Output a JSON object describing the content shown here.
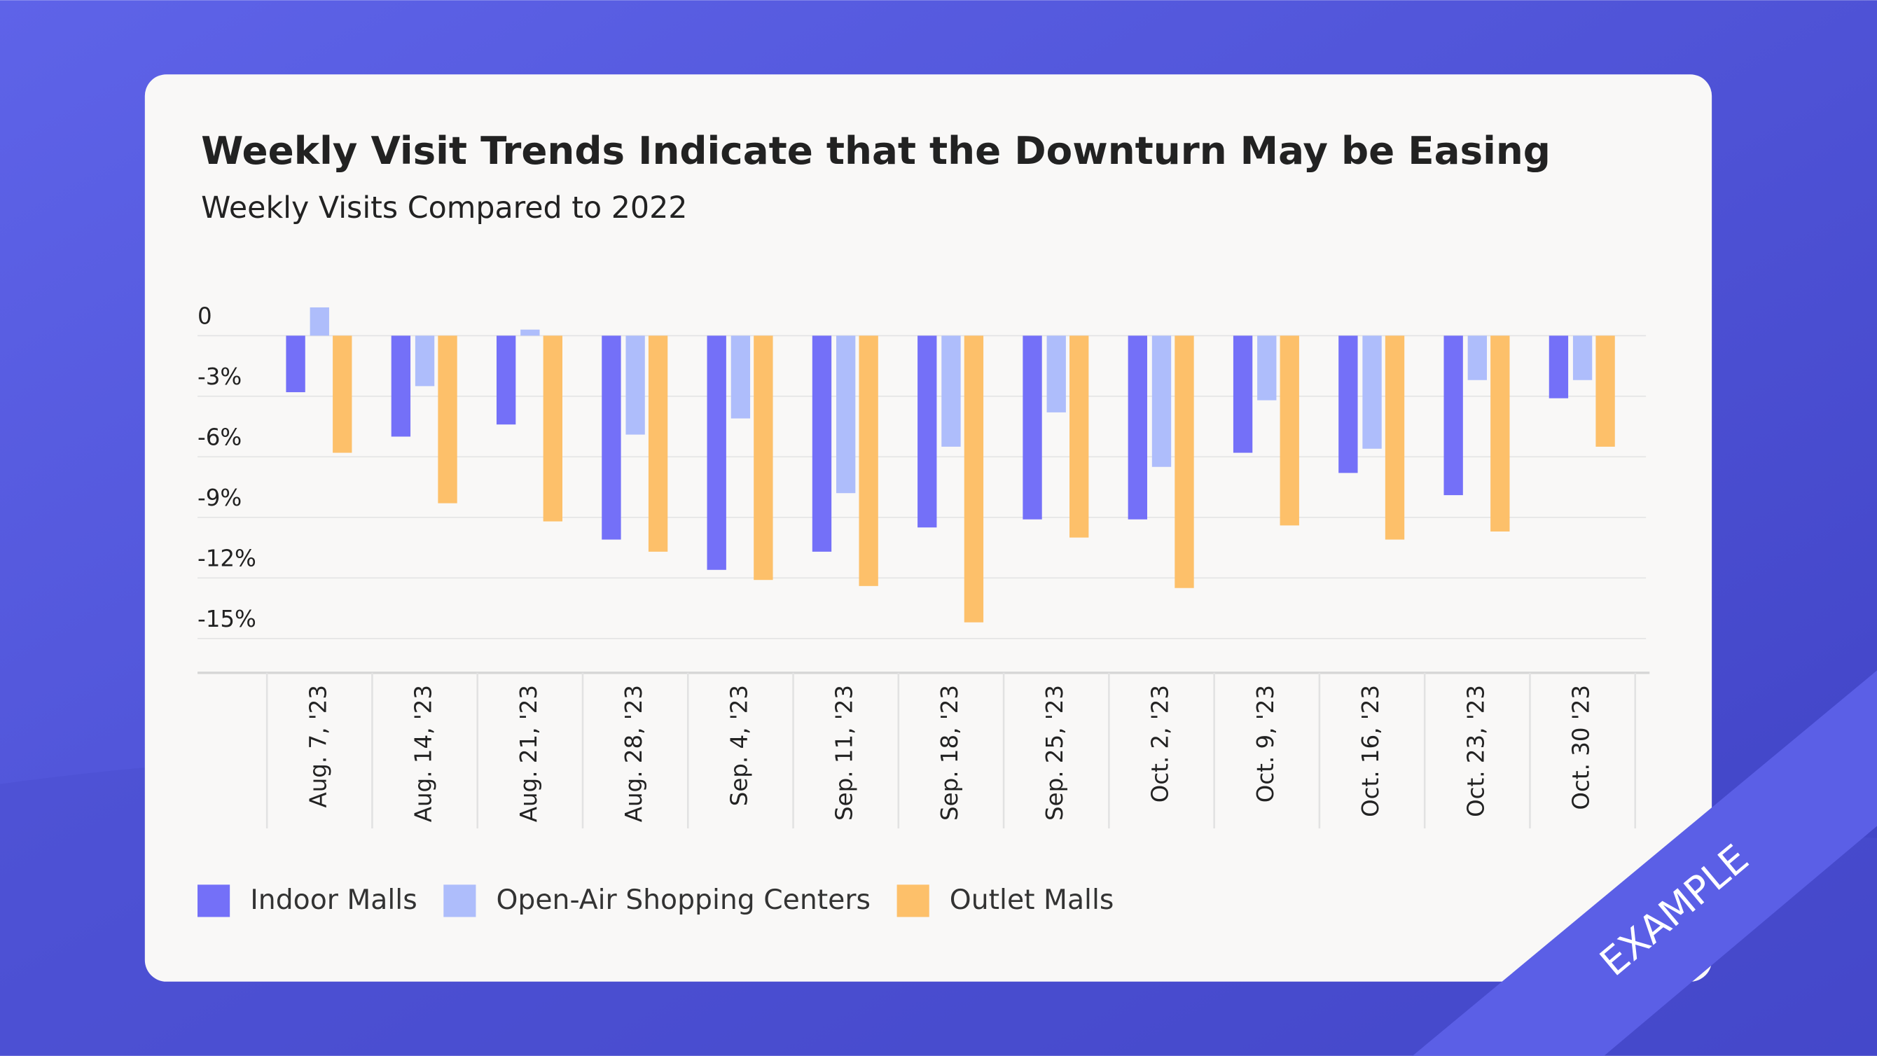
{
  "chart_data": {
    "type": "bar",
    "title": "Weekly Visit Trends Indicate that the Downturn May be Easing",
    "subtitle": "Weekly Visits Compared to 2022",
    "categories": [
      "Aug. 7, '23",
      "Aug. 14, '23",
      "Aug. 21, '23",
      "Aug. 28, '23",
      "Sep. 4, '23",
      "Sep. 11, '23",
      "Sep. 18, '23",
      "Sep. 25, '23",
      "Oct. 2, '23",
      "Oct. 9, '23",
      "Oct. 16, '23",
      "Oct. 23, '23",
      "Oct. 30 '23"
    ],
    "series": [
      {
        "name": "Indoor Malls",
        "color": "#7470f8",
        "values": [
          -2.8,
          -5.0,
          -4.4,
          -10.1,
          -11.6,
          -10.7,
          -9.5,
          -9.1,
          -9.1,
          -5.8,
          -6.8,
          -7.9,
          -3.1
        ]
      },
      {
        "name": "Open-Air Shopping Centers",
        "color": "#aebdfb",
        "values": [
          1.4,
          -2.5,
          0.3,
          -4.9,
          -4.1,
          -7.8,
          -5.5,
          -3.8,
          -6.5,
          -3.2,
          -5.6,
          -2.2,
          -2.2
        ]
      },
      {
        "name": "Outlet Malls",
        "color": "#fdc06a",
        "values": [
          -5.8,
          -8.3,
          -9.2,
          -10.7,
          -12.1,
          -12.4,
          -14.2,
          -10.0,
          -12.5,
          -9.4,
          -10.1,
          -9.7,
          -5.5
        ]
      }
    ],
    "ylim": [
      -16.7,
      1.5
    ],
    "yticks": [
      0,
      {
        "value": -3,
        "label": "-3%"
      },
      {
        "value": -6,
        "label": "-6%"
      },
      {
        "value": -9,
        "label": "-9%"
      },
      {
        "value": -12,
        "label": "-12%"
      },
      {
        "value": -15,
        "label": "-15%"
      }
    ],
    "grid": true,
    "legend": "bottom-left"
  },
  "badge": "EXAMPLE"
}
